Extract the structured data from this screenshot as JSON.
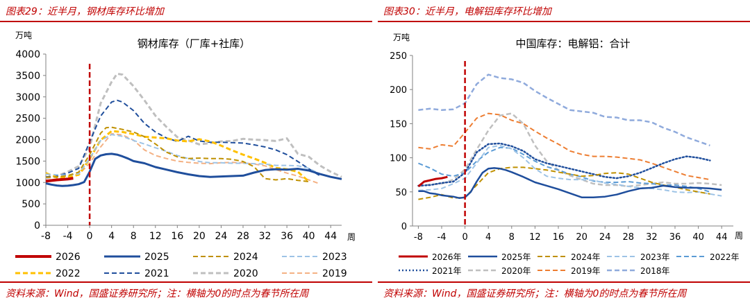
{
  "left": {
    "header": "图表29：近半月，钢材库存环比增加",
    "source": "资料来源：Wind，国盛证券研究所；注：横轴为0的时点为春节所在周",
    "chart_data": {
      "type": "line",
      "title": "钢材库存（厂库+社库）",
      "ylabel": "万吨",
      "xlabel": "周",
      "ylim": [
        0,
        4000
      ],
      "yticks": [
        0,
        500,
        1000,
        1500,
        2000,
        2500,
        3000,
        3500,
        4000
      ],
      "xlim": [
        -8,
        46
      ],
      "xticks": [
        -8,
        -4,
        0,
        4,
        8,
        12,
        16,
        20,
        24,
        28,
        32,
        36,
        40,
        44
      ],
      "marker_x": 0,
      "series": [
        {
          "name": "2026",
          "color": "#c00000",
          "dash": "solid",
          "width": 4,
          "x": [
            -8,
            -6,
            -4,
            -3
          ],
          "y": [
            1030,
            1060,
            1080,
            1100
          ]
        },
        {
          "name": "2025",
          "color": "#1f4e9c",
          "dash": "solid",
          "width": 3,
          "x": [
            -8,
            -7,
            -6,
            -5,
            -4,
            -3,
            -2,
            -1,
            0,
            1,
            2,
            3,
            4,
            5,
            6,
            7,
            8,
            10,
            12,
            14,
            16,
            18,
            20,
            22,
            24,
            26,
            28,
            30,
            32,
            34,
            36,
            38,
            40,
            42,
            44,
            46
          ],
          "y": [
            980,
            950,
            930,
            920,
            925,
            940,
            960,
            1010,
            1250,
            1550,
            1630,
            1660,
            1670,
            1650,
            1610,
            1560,
            1500,
            1450,
            1360,
            1300,
            1240,
            1190,
            1150,
            1130,
            1140,
            1150,
            1160,
            1230,
            1290,
            1310,
            1300,
            1320,
            1280,
            1200,
            1130,
            1080
          ]
        },
        {
          "name": "2024",
          "color": "#bf9000",
          "dash": "dash",
          "width": 2,
          "x": [
            -8,
            -6,
            -4,
            -2,
            0,
            2,
            3,
            4,
            6,
            8,
            10,
            12,
            14,
            16,
            18,
            20,
            22,
            24,
            26,
            28,
            30,
            32,
            34,
            36,
            38,
            40
          ],
          "y": [
            1120,
            1130,
            1160,
            1240,
            1650,
            2150,
            2280,
            2290,
            2240,
            2180,
            2070,
            1900,
            1710,
            1600,
            1560,
            1570,
            1560,
            1560,
            1540,
            1490,
            1370,
            1090,
            1060,
            1090,
            1050,
            1020
          ]
        },
        {
          "name": "2023",
          "color": "#9dc3e6",
          "dash": "dash",
          "width": 2,
          "x": [
            -8,
            -6,
            -4,
            -2,
            0,
            2,
            4,
            6,
            8,
            10,
            12,
            14,
            16,
            18,
            20,
            22,
            24,
            26,
            28,
            30,
            32,
            34,
            36,
            38,
            40,
            42
          ],
          "y": [
            1190,
            1180,
            1170,
            1200,
            1560,
            1980,
            2120,
            2080,
            1980,
            1900,
            1810,
            1730,
            1630,
            1560,
            1490,
            1460,
            1460,
            1450,
            1450,
            1440,
            1430,
            1400,
            1400,
            1390,
            1330,
            1200
          ]
        },
        {
          "name": "2022",
          "color": "#ffc000",
          "dash": "dash",
          "width": 3,
          "x": [
            -8,
            -6,
            -4,
            -2,
            0,
            2,
            4,
            6,
            8,
            10,
            12,
            14,
            16,
            18,
            20,
            22,
            24,
            26,
            28,
            30,
            32,
            34,
            36,
            38,
            40
          ],
          "y": [
            1220,
            1120,
            1130,
            1180,
            1550,
            1990,
            2200,
            2180,
            2130,
            2070,
            2050,
            2030,
            1980,
            1960,
            2010,
            1960,
            1860,
            1750,
            1650,
            1560,
            1460,
            1340,
            1310,
            1250,
            1020
          ]
        },
        {
          "name": "2021",
          "color": "#1f4e9c",
          "dash": "dash",
          "width": 2,
          "x": [
            -8,
            -6,
            -4,
            -2,
            0,
            2,
            4,
            5,
            6,
            8,
            10,
            12,
            14,
            16,
            18,
            20,
            22,
            24,
            26,
            28,
            30,
            32,
            34,
            36,
            38,
            40,
            42
          ],
          "y": [
            1130,
            1150,
            1220,
            1330,
            1950,
            2550,
            2880,
            2920,
            2880,
            2680,
            2380,
            2180,
            2040,
            1960,
            2080,
            1970,
            1940,
            1940,
            1930,
            1920,
            1880,
            1830,
            1760,
            1650,
            1490,
            1320,
            1160
          ]
        },
        {
          "name": "2020",
          "color": "#bfbfbf",
          "dash": "dash",
          "width": 3,
          "x": [
            -8,
            -6,
            -4,
            -2,
            0,
            2,
            4,
            5,
            6,
            8,
            10,
            12,
            14,
            16,
            18,
            20,
            22,
            24,
            26,
            28,
            30,
            32,
            34,
            36,
            38,
            40,
            42,
            44,
            46
          ],
          "y": [
            1100,
            1150,
            1250,
            1380,
            1820,
            2850,
            3350,
            3540,
            3520,
            3250,
            2920,
            2560,
            2300,
            2060,
            1980,
            1890,
            1920,
            1960,
            1970,
            2020,
            2000,
            1990,
            1970,
            2030,
            1670,
            1600,
            1400,
            1250,
            1130
          ]
        },
        {
          "name": "2019",
          "color": "#f4b183",
          "dash": "dash",
          "width": 2,
          "x": [
            -8,
            -6,
            -4,
            -2,
            0,
            2,
            4,
            6,
            8,
            10,
            12,
            14,
            16,
            18,
            20,
            22,
            24,
            26,
            28,
            30,
            32,
            34,
            36,
            38,
            40,
            42
          ],
          "y": [
            1050,
            1080,
            1080,
            1180,
            1450,
            1830,
            2140,
            2110,
            1990,
            1760,
            1630,
            1560,
            1500,
            1470,
            1450,
            1440,
            1460,
            1470,
            1460,
            1430,
            1390,
            1300,
            1220,
            1150,
            1060,
            970
          ]
        }
      ],
      "legend": {
        "placement": "bottom",
        "columns": 4
      }
    }
  },
  "right": {
    "header": "图表30：近半月，电解铝库存环比增加",
    "source": "资料来源：Wind，国盛证券研究所；注：横轴为0的时点为春节所在周",
    "chart_data": {
      "type": "line",
      "title": "中国库存：电解铝：合计",
      "ylabel": "万吨",
      "xlabel": "周",
      "ylim": [
        0,
        250
      ],
      "yticks": [
        0,
        50,
        100,
        150,
        200,
        250
      ],
      "xlim": [
        -9,
        46
      ],
      "xticks": [
        -8,
        -4,
        0,
        4,
        8,
        12,
        16,
        20,
        24,
        28,
        32,
        36,
        40,
        44
      ],
      "marker_x": 0,
      "series": [
        {
          "name": "2026年",
          "color": "#c00000",
          "dash": "solid",
          "width": 3,
          "x": [
            -8,
            -7,
            -6,
            -5,
            -4,
            -3
          ],
          "y": [
            58,
            65,
            67,
            69,
            70,
            72
          ]
        },
        {
          "name": "2025年",
          "color": "#1f4e9c",
          "dash": "solid",
          "width": 2.5,
          "x": [
            -8,
            -7,
            -6,
            -5,
            -4,
            -3,
            -2,
            -1,
            0,
            1,
            2,
            3,
            4,
            5,
            6,
            7,
            8,
            10,
            12,
            14,
            16,
            18,
            20,
            22,
            24,
            26,
            28,
            30,
            32,
            34,
            36,
            38,
            40,
            42,
            44
          ],
          "y": [
            51,
            51,
            48,
            47,
            45,
            44,
            43,
            41,
            42,
            50,
            65,
            78,
            84,
            85,
            84,
            82,
            79,
            72,
            64,
            59,
            54,
            48,
            42,
            42,
            43,
            46,
            51,
            55,
            56,
            59,
            57,
            56,
            56,
            55,
            53
          ]
        },
        {
          "name": "2024年",
          "color": "#bf9000",
          "dash": "dash",
          "width": 2,
          "x": [
            -8,
            -6,
            -4,
            -2,
            0,
            2,
            4,
            6,
            8,
            10,
            12,
            14,
            16,
            18,
            20,
            22,
            24,
            26,
            28,
            30,
            32,
            34,
            36,
            38,
            40,
            42
          ],
          "y": [
            39,
            42,
            46,
            41,
            42,
            60,
            78,
            84,
            86,
            86,
            84,
            82,
            79,
            76,
            73,
            74,
            77,
            78,
            76,
            70,
            64,
            60,
            57,
            53,
            50,
            47
          ]
        },
        {
          "name": "2023年",
          "color": "#9dc3e6",
          "dash": "dash",
          "width": 2,
          "x": [
            -8,
            -6,
            -4,
            -2,
            0,
            2,
            4,
            6,
            8,
            10,
            12,
            14,
            16,
            18,
            20,
            22,
            24,
            26,
            28,
            30,
            32,
            34,
            36,
            38,
            40,
            42,
            44
          ],
          "y": [
            52,
            53,
            55,
            62,
            70,
            92,
            115,
            118,
            113,
            100,
            84,
            73,
            70,
            68,
            68,
            67,
            63,
            61,
            58,
            56,
            55,
            53,
            50,
            49,
            50,
            47,
            44
          ]
        },
        {
          "name": "2022年",
          "color": "#5b9bd5",
          "dash": "dash",
          "width": 2,
          "x": [
            -8,
            -6,
            -4,
            -2,
            0,
            2,
            4,
            6,
            8,
            10,
            12,
            14,
            16,
            18,
            20,
            22,
            24,
            26,
            28,
            30,
            32,
            34,
            36,
            38,
            40,
            42
          ],
          "y": [
            92,
            85,
            76,
            73,
            78,
            95,
            108,
            115,
            114,
            105,
            95,
            87,
            82,
            76,
            72,
            66,
            64,
            64,
            65,
            63,
            62,
            60,
            60,
            58,
            55,
            50
          ]
        },
        {
          "name": "2021年",
          "color": "#1f4e9c",
          "dash": "dot",
          "width": 2.5,
          "x": [
            -8,
            -6,
            -4,
            -2,
            0,
            2,
            4,
            6,
            8,
            10,
            12,
            14,
            16,
            18,
            20,
            22,
            24,
            26,
            28,
            30,
            32,
            34,
            36,
            38,
            40,
            42
          ],
          "y": [
            59,
            60,
            63,
            65,
            78,
            108,
            120,
            121,
            117,
            110,
            98,
            92,
            88,
            84,
            80,
            76,
            72,
            70,
            73,
            78,
            85,
            92,
            98,
            102,
            100,
            96
          ]
        },
        {
          "name": "2020年",
          "color": "#bfbfbf",
          "dash": "dash",
          "width": 2.5,
          "x": [
            -8,
            -6,
            -4,
            -2,
            0,
            2,
            4,
            6,
            8,
            10,
            12,
            14,
            16,
            18,
            20,
            22,
            24,
            26,
            28,
            30,
            32,
            34,
            36,
            38,
            40,
            42,
            44
          ],
          "y": [
            58,
            61,
            62,
            68,
            83,
            112,
            140,
            162,
            165,
            150,
            118,
            95,
            82,
            74,
            68,
            62,
            60,
            60,
            58,
            60,
            62,
            64,
            62,
            62,
            63,
            62,
            60
          ]
        },
        {
          "name": "2019年",
          "color": "#ed7d31",
          "dash": "dash",
          "width": 2,
          "x": [
            -8,
            -6,
            -4,
            -2,
            0,
            2,
            4,
            6,
            8,
            10,
            12,
            14,
            16,
            18,
            20,
            22,
            24,
            26,
            28,
            30,
            32,
            34,
            36,
            38,
            40,
            42
          ],
          "y": [
            115,
            113,
            119,
            117,
            137,
            158,
            165,
            163,
            155,
            150,
            139,
            129,
            120,
            110,
            105,
            102,
            102,
            101,
            99,
            97,
            92,
            86,
            80,
            74,
            71,
            68
          ]
        },
        {
          "name": "2018年",
          "color": "#8faadc",
          "dash": "dash",
          "width": 2.5,
          "x": [
            -8,
            -6,
            -4,
            -2,
            0,
            2,
            4,
            6,
            8,
            10,
            12,
            14,
            16,
            18,
            20,
            22,
            24,
            26,
            28,
            30,
            32,
            34,
            36,
            38,
            40,
            42
          ],
          "y": [
            170,
            172,
            170,
            171,
            180,
            208,
            222,
            217,
            215,
            210,
            198,
            188,
            179,
            170,
            168,
            166,
            160,
            159,
            155,
            155,
            152,
            144,
            138,
            130,
            124,
            118
          ]
        }
      ],
      "legend": {
        "placement": "bottom",
        "columns": 5
      }
    }
  }
}
